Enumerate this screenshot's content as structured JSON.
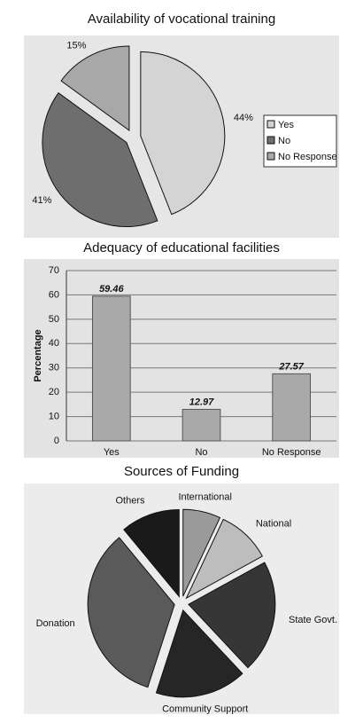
{
  "chart_data": [
    {
      "type": "pie",
      "title": "Availability of vocational training",
      "categories": [
        "Yes",
        "No",
        "No Response"
      ],
      "values": [
        44,
        41,
        15
      ],
      "value_labels": [
        "44%",
        "41%",
        "15%"
      ],
      "colors": [
        "#d4d4d4",
        "#6e6e6e",
        "#a8a8a8"
      ],
      "legend": "right"
    },
    {
      "type": "bar",
      "title": "Adequacy of educational facilities",
      "y_label": "Percentage",
      "categories": [
        "Yes",
        "No",
        "No Response"
      ],
      "values": [
        59.46,
        12.97,
        27.57
      ],
      "color": "#a9a9a9",
      "ylim": [
        0,
        70
      ],
      "yticks": [
        0,
        10,
        20,
        30,
        40,
        50,
        60,
        70
      ],
      "grid": true
    },
    {
      "type": "pie",
      "title": "Sources of Funding",
      "categories": [
        "International",
        "National",
        "State Govt.",
        "Community Support",
        "Donation",
        "Others"
      ],
      "values": [
        7,
        10,
        21,
        17,
        34,
        11
      ],
      "colors": [
        "#9a9a9a",
        "#bdbdbd",
        "#363636",
        "#262626",
        "#5a5a5a",
        "#1a1a1a"
      ]
    }
  ]
}
